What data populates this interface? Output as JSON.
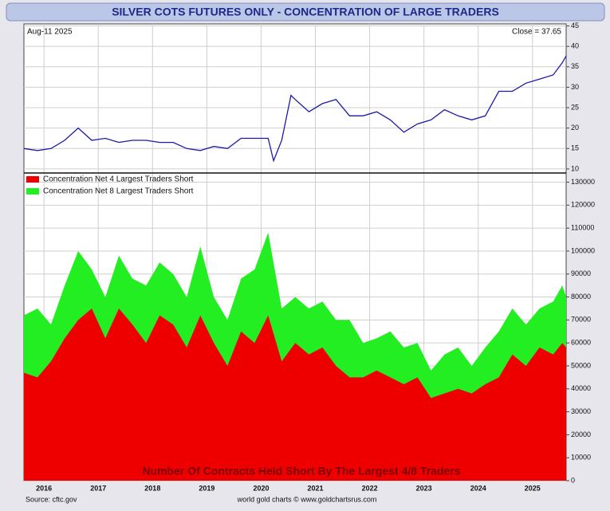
{
  "chart_data": [
    {
      "type": "line",
      "title": "SILVER COTS FUTURES ONLY - CONCENTRATION OF LARGE TRADERS",
      "annotations": [
        "Aug-11  2025",
        "Close = 37.65"
      ],
      "x": [
        2015.63,
        2015.88,
        2016.13,
        2016.38,
        2016.63,
        2016.88,
        2017.13,
        2017.38,
        2017.63,
        2017.88,
        2018.13,
        2018.38,
        2018.63,
        2018.88,
        2019.13,
        2019.38,
        2019.63,
        2019.88,
        2020.13,
        2020.23,
        2020.38,
        2020.55,
        2020.63,
        2020.88,
        2021.13,
        2021.38,
        2021.63,
        2021.88,
        2022.13,
        2022.38,
        2022.63,
        2022.88,
        2023.13,
        2023.38,
        2023.63,
        2023.88,
        2024.13,
        2024.38,
        2024.63,
        2024.88,
        2025.13,
        2025.38,
        2025.55,
        2025.62
      ],
      "series": [
        {
          "name": "Silver",
          "color": "#1a1aa8",
          "values": [
            15,
            14.5,
            15,
            17,
            20,
            17,
            17.5,
            16.5,
            17,
            17,
            16.5,
            16.5,
            15,
            14.5,
            15.5,
            15,
            17.5,
            17.5,
            17.5,
            12,
            17,
            28,
            27,
            24,
            26,
            27,
            23,
            23,
            24,
            22,
            19,
            21,
            22,
            24.5,
            23,
            22,
            23,
            29,
            29,
            31,
            32,
            33,
            36,
            37.65
          ]
        }
      ],
      "xlim": [
        2015.63,
        2025.62
      ],
      "ylim": [
        9,
        45.5
      ],
      "yticks": [
        10,
        15,
        20,
        25,
        30,
        35,
        40,
        45
      ],
      "grid": true
    },
    {
      "type": "area",
      "annotations": [
        "Number Of Contracts Held Short By The Largest 4/8 Traders",
        "Source: cftc.gov",
        "world gold charts © www.goldchartsrus.com"
      ],
      "x": [
        2015.63,
        2015.88,
        2016.13,
        2016.38,
        2016.63,
        2016.88,
        2017.13,
        2017.38,
        2017.63,
        2017.88,
        2018.13,
        2018.38,
        2018.63,
        2018.88,
        2019.13,
        2019.38,
        2019.63,
        2019.88,
        2020.13,
        2020.38,
        2020.63,
        2020.88,
        2021.13,
        2021.38,
        2021.63,
        2021.88,
        2022.13,
        2022.38,
        2022.63,
        2022.88,
        2023.13,
        2023.38,
        2023.63,
        2023.88,
        2024.13,
        2024.38,
        2024.63,
        2024.88,
        2025.13,
        2025.38,
        2025.55,
        2025.62
      ],
      "series": [
        {
          "name": "Concentration Net 8 Largest Traders Short",
          "color": "#22ee22",
          "values": [
            72000,
            75000,
            68000,
            85000,
            100000,
            92000,
            80000,
            98000,
            88000,
            85000,
            95000,
            90000,
            80000,
            102000,
            80000,
            70000,
            88000,
            92000,
            108000,
            75000,
            80000,
            75000,
            78000,
            70000,
            70000,
            60000,
            62000,
            65000,
            58000,
            60000,
            48000,
            55000,
            58000,
            50000,
            58000,
            65000,
            75000,
            68000,
            75000,
            78000,
            85000,
            80000
          ]
        },
        {
          "name": "Concentration Net 4 Largest Traders Short",
          "color": "#ee0000",
          "values": [
            47000,
            45000,
            52000,
            62000,
            70000,
            75000,
            62000,
            75000,
            68000,
            60000,
            72000,
            68000,
            58000,
            72000,
            60000,
            50000,
            65000,
            60000,
            72000,
            52000,
            60000,
            55000,
            58000,
            50000,
            45000,
            45000,
            48000,
            45000,
            42000,
            45000,
            36000,
            38000,
            40000,
            38000,
            42000,
            45000,
            55000,
            50000,
            58000,
            55000,
            60000,
            58000
          ]
        }
      ],
      "legend_order": [
        1,
        0
      ],
      "xlim": [
        2015.63,
        2025.62
      ],
      "xticks": [
        2016,
        2017,
        2018,
        2019,
        2020,
        2021,
        2022,
        2023,
        2024,
        2025
      ],
      "ylim": [
        0,
        134000
      ],
      "yticks": [
        0,
        10000,
        20000,
        30000,
        40000,
        50000,
        60000,
        70000,
        80000,
        90000,
        100000,
        110000,
        120000,
        130000
      ],
      "grid": true
    }
  ]
}
